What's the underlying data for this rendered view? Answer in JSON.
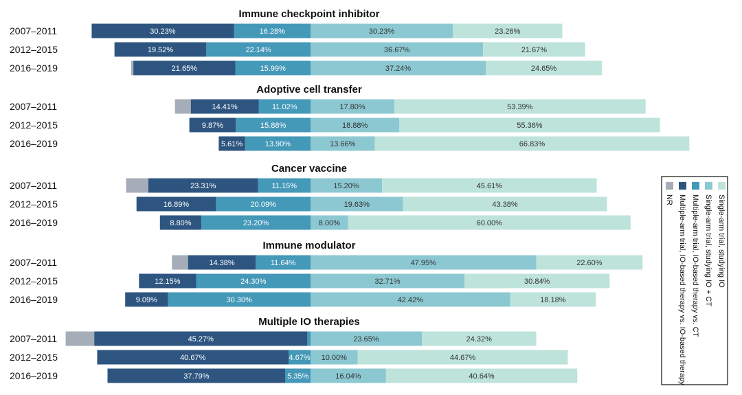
{
  "chart_data": {
    "type": "bar",
    "orientation": "horizontal",
    "stacked": true,
    "diverging": true,
    "series": [
      {
        "name": "NR",
        "color": "#a5adb8"
      },
      {
        "name": "Multiple-arm trial, IO-based therapy vs. IO-based therapy",
        "color": "#2d5580"
      },
      {
        "name": "Multiple-arm trial, IO-based therapy vs. CT",
        "color": "#4498b8"
      },
      {
        "name": "Single-arm trial, studying IO + CT",
        "color": "#8cc8d2"
      },
      {
        "name": "Single-arm trial, studying IO",
        "color": "#bde3db"
      }
    ],
    "label_colors": [
      "#ffffff",
      "#ffffff",
      "#ffffff",
      "#333333",
      "#333333"
    ],
    "groups": [
      {
        "title": "Immune checkpoint inhibitor",
        "rows": [
          {
            "period": "2007–2011",
            "values": [
              0,
              30.23,
              16.28,
              30.23,
              23.26
            ],
            "labels": [
              "",
              "30.23%",
              "16.28%",
              "30.23%",
              "23.26%"
            ]
          },
          {
            "period": "2012–2015",
            "values": [
              0,
              19.52,
              22.14,
              36.67,
              21.67
            ],
            "labels": [
              "",
              "19.52%",
              "22.14%",
              "36.67%",
              "21.67%"
            ]
          },
          {
            "period": "2016–2019",
            "values": [
              0.47,
              21.65,
              15.99,
              37.24,
              24.65
            ],
            "labels": [
              "",
              "21.65%",
              "15.99%",
              "37.24%",
              "24.65%"
            ]
          }
        ]
      },
      {
        "title": "Adoptive cell transfer",
        "rows": [
          {
            "period": "2007–2011",
            "values": [
              3.38,
              14.41,
              11.02,
              17.8,
              53.39
            ],
            "labels": [
              "",
              "14.41%",
              "11.02%",
              "17.80%",
              "53.39%"
            ]
          },
          {
            "period": "2012–2015",
            "values": [
              0,
              9.87,
              15.88,
              18.88,
              55.36
            ],
            "labels": [
              "",
              "9.87%",
              "15.88%",
              "18.88%",
              "55.36%"
            ]
          },
          {
            "period": "2016–2019",
            "values": [
              0,
              5.61,
              13.9,
              13.66,
              66.83
            ],
            "labels": [
              "",
              "5.61%",
              "13.90%",
              "13.66%",
              "66.83%"
            ]
          }
        ]
      },
      {
        "title": "Cancer vaccine",
        "rows": [
          {
            "period": "2007–2011",
            "values": [
              4.73,
              23.31,
              11.15,
              15.2,
              45.61
            ],
            "labels": [
              "",
              "23.31%",
              "11.15%",
              "15.20%",
              "45.61%"
            ]
          },
          {
            "period": "2012–2015",
            "values": [
              0,
              16.89,
              20.09,
              19.63,
              43.38
            ],
            "labels": [
              "",
              "16.89%",
              "20.09%",
              "19.63%",
              "43.38%"
            ]
          },
          {
            "period": "2016–2019",
            "values": [
              0,
              8.8,
              23.2,
              8.0,
              60.0
            ],
            "labels": [
              "",
              "8.80%",
              "23.20%",
              "8.00%",
              "60.00%"
            ]
          }
        ]
      },
      {
        "title": "Immune modulator",
        "rows": [
          {
            "period": "2007–2011",
            "values": [
              3.43,
              14.38,
              11.64,
              47.95,
              22.6
            ],
            "labels": [
              "",
              "14.38%",
              "11.64%",
              "47.95%",
              "22.60%"
            ]
          },
          {
            "period": "2012–2015",
            "values": [
              0,
              12.15,
              24.3,
              32.71,
              30.84
            ],
            "labels": [
              "",
              "12.15%",
              "24.30%",
              "32.71%",
              "30.84%"
            ]
          },
          {
            "period": "2016–2019",
            "values": [
              0,
              9.09,
              30.3,
              42.42,
              18.18
            ],
            "labels": [
              "",
              "9.09%",
              "30.30%",
              "42.42%",
              "18.18%"
            ]
          }
        ]
      },
      {
        "title": "Multiple IO therapies",
        "rows": [
          {
            "period": "2007–2011",
            "values": [
              6.08,
              45.27,
              0.68,
              23.65,
              24.32
            ],
            "labels": [
              "",
              "45.27%",
              "",
              "23.65%",
              "24.32%"
            ]
          },
          {
            "period": "2012–2015",
            "values": [
              0,
              40.67,
              4.67,
              10.0,
              44.67
            ],
            "labels": [
              "",
              "40.67%",
              "4.67%",
              "10.00%",
              "44.67%"
            ]
          },
          {
            "period": "2016–2019",
            "values": [
              0,
              37.79,
              5.35,
              16.04,
              40.64
            ],
            "labels": [
              "",
              "37.79%",
              "5.35%",
              "16.04%",
              "40.64%"
            ]
          }
        ]
      }
    ],
    "legend_position": "right"
  }
}
